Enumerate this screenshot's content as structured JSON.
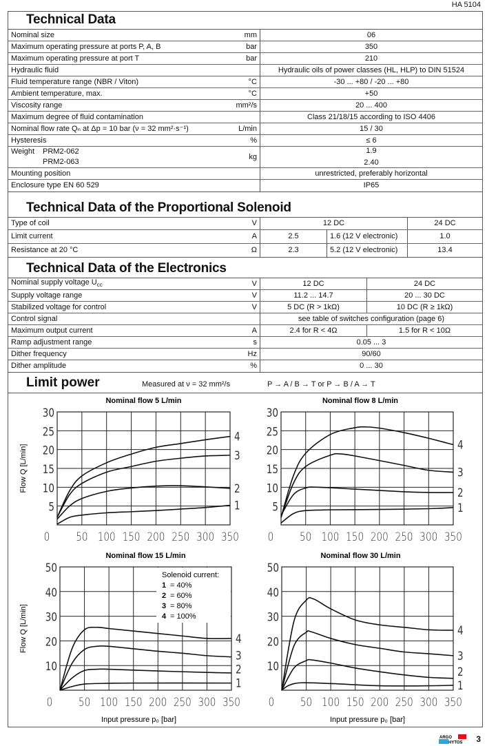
{
  "doc_id": "HA 5104",
  "page_number": "3",
  "logo_text": "ARGO HYTOS",
  "technical_data": {
    "title": "Technical Data",
    "rows": [
      {
        "label": "Nominal size",
        "unit": "mm",
        "value": "06"
      },
      {
        "label": "Maximum operating pressure at ports  P, A, B",
        "unit": "bar",
        "value": "350"
      },
      {
        "label": "Maximum operating pressure at port  T",
        "unit": "bar",
        "value": "210"
      },
      {
        "label": "Hydraulic fluid",
        "unit": "",
        "value": "Hydraulic oils of power classes (HL, HLP) to DIN 51524"
      },
      {
        "label": "Fluid temperature range (NBR / Viton)",
        "unit": "°C",
        "value": "-30 ... +80 / -20 ... +80"
      },
      {
        "label": "Ambient temperature, max.",
        "unit": "°C",
        "value": "+50"
      },
      {
        "label": "Viscosity range",
        "unit": "mm²/s",
        "value": "20 ... 400"
      },
      {
        "label": "Maximum degree of fluid contamination",
        "unit": "",
        "value": "Class 21/18/15 according to ISO 4406"
      },
      {
        "label": "Nominal flow  rate Qₙ at Δp = 10 bar (ν = 32 mm²·s⁻¹)",
        "unit": "L/min",
        "value": "15 / 30"
      },
      {
        "label": "Hysteresis",
        "unit": "%",
        "value": "≤ 6"
      }
    ],
    "weight": {
      "label": "Weight",
      "items": [
        {
          "name": "PRM2-062",
          "value": "1.9"
        },
        {
          "name": "PRM2-063",
          "value": "2.40"
        }
      ],
      "unit": "kg"
    },
    "rows_after": [
      {
        "label": "Mounting position",
        "unit": "",
        "value": "unrestricted, preferably horizontal"
      },
      {
        "label": "Enclosure type EN 60 529",
        "unit": "",
        "value": "IP65"
      }
    ]
  },
  "solenoid": {
    "title": "Technical Data of the Proportional Solenoid",
    "coil": {
      "label": "Type of coil",
      "unit": "V",
      "v12": "12 DC",
      "v24": "24 DC"
    },
    "rows": [
      {
        "label": "Limit current",
        "unit": "A",
        "a": "2.5",
        "b": "1.6 (12 V electronic)",
        "c": "1.0"
      },
      {
        "label": "Resistance at  20 °C",
        "unit": "Ω",
        "a": "2.3",
        "b": "5.2 (12 V electronic)",
        "c": "13.4"
      }
    ]
  },
  "electronics": {
    "title": "Technical Data of the Electronics",
    "rows": [
      {
        "label": "Nominal supply voltage U",
        "label_sub": "cc",
        "unit": "V",
        "a": "12 DC",
        "b": "24 DC"
      },
      {
        "label": "Supply voltage range",
        "unit": "V",
        "a": "11.2 ... 14.7",
        "b": "20 ... 30 DC"
      },
      {
        "label": "Stabilized voltage for control",
        "unit": "V",
        "a": "5 DC (R > 1kΩ)",
        "b": "10 DC (R ≥ 1kΩ)"
      },
      {
        "label": "Control signal",
        "unit": "",
        "value": "see table of switches configuration (page 6)"
      },
      {
        "label": "Maximum output current",
        "unit": "A",
        "a": "2.4 for R < 4Ω",
        "b": "1.5 for R < 10Ω"
      },
      {
        "label": "Ramp adjustment range",
        "unit": "s",
        "value": "0.05 ... 3"
      },
      {
        "label": "Dither frequency",
        "unit": "Hz",
        "value": "90/60"
      },
      {
        "label": "Dither amplitude",
        "unit": "%",
        "value": "0 ... 30"
      }
    ]
  },
  "limit_power": {
    "title": "Limit power",
    "measured": "Measured at ν = 32 mm²/s",
    "direction": "P → A / B → T or P → B / A → T"
  },
  "chart_data": [
    {
      "type": "line",
      "title": "Nominal flow 5 L/min",
      "ylabel": "Flow Q  [L/min]",
      "xlabel": "",
      "xlim": [
        0,
        350
      ],
      "ylim": [
        0,
        30
      ],
      "xticks": [
        0,
        50,
        100,
        150,
        200,
        250,
        300,
        350
      ],
      "yticks": [
        5,
        10,
        15,
        20,
        25,
        30
      ],
      "grid": true,
      "series": [
        {
          "name": "4",
          "x": [
            0,
            25,
            50,
            100,
            150,
            200,
            250,
            300,
            350
          ],
          "y": [
            2,
            9,
            13,
            16.5,
            18.8,
            20.6,
            21.6,
            22.6,
            23.5
          ]
        },
        {
          "name": "3",
          "x": [
            0,
            25,
            50,
            100,
            150,
            200,
            250,
            300,
            350
          ],
          "y": [
            2,
            8,
            11,
            14,
            15.5,
            16.9,
            17.7,
            18.3,
            18.5
          ]
        },
        {
          "name": "2",
          "x": [
            0,
            25,
            50,
            100,
            150,
            200,
            250,
            300,
            350
          ],
          "y": [
            1.5,
            5,
            7,
            8.9,
            9.8,
            10.3,
            10.4,
            10.1,
            9.7
          ]
        },
        {
          "name": "1",
          "x": [
            0,
            25,
            50,
            100,
            150,
            200,
            250,
            300,
            350
          ],
          "y": [
            0.2,
            2,
            2.6,
            3.2,
            3.5,
            3.8,
            4.2,
            4.6,
            5.2
          ]
        }
      ]
    },
    {
      "type": "line",
      "title": "Nominal flow 8 L/min",
      "ylabel": "",
      "xlabel": "",
      "xlim": [
        0,
        350
      ],
      "ylim": [
        0,
        30
      ],
      "xticks": [
        0,
        50,
        100,
        150,
        200,
        250,
        300,
        350
      ],
      "yticks": [
        5,
        10,
        15,
        20,
        25,
        30
      ],
      "grid": true,
      "series": [
        {
          "name": "4",
          "x": [
            0,
            25,
            50,
            100,
            150,
            175,
            200,
            250,
            300,
            350
          ],
          "y": [
            2,
            13,
            19,
            24,
            25.8,
            26,
            25.7,
            24.5,
            23,
            21.3
          ]
        },
        {
          "name": "3",
          "x": [
            0,
            25,
            50,
            100,
            125,
            175,
            250,
            300,
            350
          ],
          "y": [
            2,
            11,
            15.5,
            18.5,
            18.8,
            17.7,
            15.8,
            14.5,
            14
          ]
        },
        {
          "name": "2",
          "x": [
            0,
            25,
            50,
            75,
            150,
            250,
            300,
            350
          ],
          "y": [
            2.5,
            8,
            9.8,
            10,
            9.5,
            8.8,
            8.6,
            8.6
          ]
        },
        {
          "name": "1",
          "x": [
            0,
            25,
            50,
            100,
            200,
            300,
            350
          ],
          "y": [
            0.5,
            3,
            3.8,
            4,
            4.1,
            4.3,
            4.6
          ]
        }
      ]
    },
    {
      "type": "line",
      "title": "Nominal flow 15 L/min",
      "ylabel": "Flow Q  [L/min]",
      "xlabel": "Input pressure p₀ [bar]",
      "xlim": [
        0,
        350
      ],
      "ylim": [
        0,
        50
      ],
      "xticks": [
        0,
        50,
        100,
        150,
        200,
        250,
        300,
        350
      ],
      "yticks": [
        10,
        20,
        30,
        40,
        50
      ],
      "grid": true,
      "legend": {
        "title": "Solenoid current:",
        "entries": [
          {
            "key": "1",
            "text": "= 40%"
          },
          {
            "key": "2",
            "text": "= 60%"
          },
          {
            "key": "3",
            "text": "= 80%"
          },
          {
            "key": "4",
            "text": "= 100%"
          }
        ],
        "position": "top-right"
      },
      "series": [
        {
          "name": "4",
          "x": [
            0,
            25,
            50,
            75,
            100,
            150,
            200,
            250,
            300,
            350
          ],
          "y": [
            0,
            17,
            24.5,
            25.5,
            25,
            24,
            23,
            22,
            21,
            21
          ]
        },
        {
          "name": "3",
          "x": [
            0,
            25,
            50,
            75,
            100,
            150,
            200,
            250,
            300,
            350
          ],
          "y": [
            0,
            11,
            16.5,
            17.8,
            17.8,
            16.8,
            15.8,
            15,
            14,
            13.5
          ]
        },
        {
          "name": "2",
          "x": [
            0,
            25,
            50,
            75,
            100,
            200,
            300,
            350
          ],
          "y": [
            0,
            5,
            8,
            8.5,
            8.5,
            7.8,
            7.2,
            7
          ]
        },
        {
          "name": "1",
          "x": [
            0,
            25,
            50,
            100,
            150,
            350
          ],
          "y": [
            0,
            1.5,
            2.5,
            2.8,
            2.9,
            2.9
          ]
        }
      ]
    },
    {
      "type": "line",
      "title": "Nominal flow 30 L/min",
      "ylabel": "",
      "xlabel": "Input pressure p₀ [bar]",
      "xlim": [
        0,
        350
      ],
      "ylim": [
        0,
        50
      ],
      "xticks": [
        0,
        50,
        100,
        150,
        200,
        250,
        300,
        350
      ],
      "yticks": [
        10,
        20,
        30,
        40,
        50
      ],
      "grid": true,
      "series": [
        {
          "name": "4",
          "x": [
            0,
            25,
            50,
            65,
            100,
            150,
            200,
            250,
            300,
            350
          ],
          "y": [
            0,
            28,
            36.5,
            37,
            33,
            28.5,
            26.5,
            25.5,
            24.5,
            24.3
          ]
        },
        {
          "name": "3",
          "x": [
            0,
            25,
            50,
            60,
            100,
            150,
            200,
            250,
            300,
            350
          ],
          "y": [
            0,
            18,
            23.5,
            23.7,
            21,
            18.5,
            17,
            15.5,
            14.8,
            14
          ]
        },
        {
          "name": "2",
          "x": [
            0,
            25,
            50,
            60,
            100,
            150,
            200,
            250,
            300,
            350
          ],
          "y": [
            0,
            9,
            12,
            12.3,
            11,
            9,
            7.5,
            6.2,
            5.2,
            4.8
          ]
        },
        {
          "name": "1",
          "x": [
            0,
            15,
            40,
            100,
            200,
            300,
            350
          ],
          "y": [
            0,
            2,
            3,
            2.7,
            1.8,
            1.8,
            2
          ]
        }
      ]
    }
  ]
}
